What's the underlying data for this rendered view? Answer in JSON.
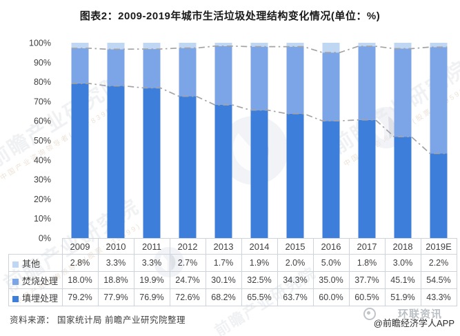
{
  "title": "图表2：2009-2019年城市生活垃圾处理结构变化情况(单位：%)",
  "footer": {
    "source": "资料来源：  国家统计局 前瞻产业研究院整理",
    "attribution": "@前瞻经济学人APP"
  },
  "watermark": {
    "brand": "前瞻产业研究院",
    "tagline": "中国产业咨询领导者(股票:839599)",
    "overlay": "环联资讯"
  },
  "colors": {
    "landfill": "#3e7edb",
    "incineration": "#7ca5e8",
    "other": "#bfd7f3",
    "series_line": "#a3a3a3",
    "table_border": "#cdd3db",
    "text": "#3f3f3f",
    "title_text": "#1a1a1a"
  },
  "chart_data": {
    "type": "bar",
    "stacked": true,
    "title": "图表2：2009-2019年城市生活垃圾处理结构变化情况(单位：%)",
    "unit": "%",
    "categories": [
      "2009",
      "2010",
      "2011",
      "2012",
      "2013",
      "2014",
      "2015",
      "2016",
      "2017",
      "2018",
      "2019E"
    ],
    "series": [
      {
        "name": "其他",
        "color_key": "other",
        "values": [
          2.8,
          3.3,
          3.3,
          2.7,
          1.7,
          1.9,
          2.0,
          5.0,
          1.8,
          3.0,
          2.2
        ]
      },
      {
        "name": "焚烧处理",
        "color_key": "incineration",
        "values": [
          18.0,
          18.8,
          19.9,
          24.7,
          30.1,
          32.5,
          34.3,
          35.0,
          37.7,
          45.1,
          54.5
        ]
      },
      {
        "name": "填埋处理",
        "color_key": "landfill",
        "values": [
          79.2,
          77.9,
          76.9,
          72.6,
          68.2,
          65.5,
          63.7,
          60.0,
          60.5,
          51.9,
          43.3
        ]
      }
    ],
    "stack_order_bottom_to_top": [
      "填埋处理",
      "焚烧处理",
      "其他"
    ],
    "ylim": [
      0,
      100
    ],
    "ytick_step": 10,
    "ytick_suffix": "%",
    "grid": false,
    "series_lines": "dash-dot gray lines tracing tops of 填埋处理 and 填埋+焚烧 stack boundaries",
    "legend_position": "data-table-left",
    "value_format": "one-decimal-percent"
  }
}
